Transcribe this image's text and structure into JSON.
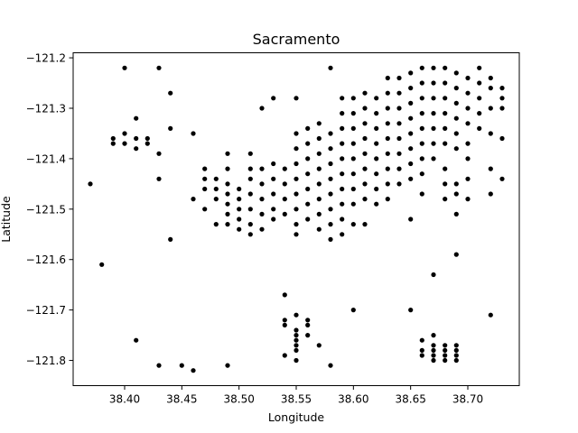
{
  "chart_data": {
    "type": "scatter",
    "title": "Sacramento",
    "xlabel": "Longitude",
    "ylabel": "Latitude",
    "xlim": [
      38.355,
      38.745
    ],
    "ylim": [
      -121.85,
      -121.19
    ],
    "xticks": [
      38.4,
      38.45,
      38.5,
      38.55,
      38.6,
      38.65,
      38.7
    ],
    "xtick_labels": [
      "38.40",
      "38.45",
      "38.50",
      "38.55",
      "38.60",
      "38.65",
      "38.70"
    ],
    "yticks": [
      -121.2,
      -121.3,
      -121.4,
      -121.5,
      -121.6,
      -121.7,
      -121.8
    ],
    "ytick_labels": [
      "−121.2",
      "−121.3",
      "−121.4",
      "−121.5",
      "−121.6",
      "−121.7",
      "−121.8"
    ],
    "grid": false,
    "legend": "none",
    "marker_color": "#000000",
    "points": [
      [
        38.4,
        -121.22
      ],
      [
        38.43,
        -121.22
      ],
      [
        38.58,
        -121.22
      ],
      [
        38.44,
        -121.27
      ],
      [
        38.41,
        -121.32
      ],
      [
        38.44,
        -121.34
      ],
      [
        38.53,
        -121.28
      ],
      [
        38.55,
        -121.28
      ],
      [
        38.52,
        -121.3
      ],
      [
        38.39,
        -121.36
      ],
      [
        38.39,
        -121.37
      ],
      [
        38.4,
        -121.35
      ],
      [
        38.4,
        -121.37
      ],
      [
        38.41,
        -121.36
      ],
      [
        38.41,
        -121.38
      ],
      [
        38.42,
        -121.36
      ],
      [
        38.42,
        -121.37
      ],
      [
        38.43,
        -121.39
      ],
      [
        38.43,
        -121.44
      ],
      [
        38.37,
        -121.45
      ],
      [
        38.38,
        -121.61
      ],
      [
        38.44,
        -121.56
      ],
      [
        38.46,
        -121.35
      ],
      [
        38.46,
        -121.48
      ],
      [
        38.48,
        -121.53
      ],
      [
        38.47,
        -121.5
      ],
      [
        38.41,
        -121.76
      ],
      [
        38.43,
        -121.81
      ],
      [
        38.45,
        -121.81
      ],
      [
        38.46,
        -121.82
      ],
      [
        38.49,
        -121.81
      ],
      [
        38.54,
        -121.67
      ],
      [
        38.54,
        -121.72
      ],
      [
        38.54,
        -121.73
      ],
      [
        38.54,
        -121.79
      ],
      [
        38.55,
        -121.71
      ],
      [
        38.55,
        -121.74
      ],
      [
        38.55,
        -121.75
      ],
      [
        38.55,
        -121.76
      ],
      [
        38.55,
        -121.77
      ],
      [
        38.55,
        -121.78
      ],
      [
        38.55,
        -121.8
      ],
      [
        38.56,
        -121.72
      ],
      [
        38.56,
        -121.73
      ],
      [
        38.56,
        -121.75
      ],
      [
        38.57,
        -121.77
      ],
      [
        38.58,
        -121.81
      ],
      [
        38.6,
        -121.7
      ],
      [
        38.65,
        -121.7
      ],
      [
        38.66,
        -121.76
      ],
      [
        38.66,
        -121.78
      ],
      [
        38.66,
        -121.79
      ],
      [
        38.67,
        -121.75
      ],
      [
        38.67,
        -121.77
      ],
      [
        38.67,
        -121.78
      ],
      [
        38.67,
        -121.79
      ],
      [
        38.67,
        -121.8
      ],
      [
        38.68,
        -121.77
      ],
      [
        38.68,
        -121.78
      ],
      [
        38.68,
        -121.79
      ],
      [
        38.68,
        -121.8
      ],
      [
        38.69,
        -121.77
      ],
      [
        38.69,
        -121.78
      ],
      [
        38.69,
        -121.79
      ],
      [
        38.69,
        -121.8
      ],
      [
        38.72,
        -121.71
      ],
      [
        38.67,
        -121.63
      ],
      [
        38.69,
        -121.59
      ],
      [
        38.47,
        -121.42
      ],
      [
        38.47,
        -121.44
      ],
      [
        38.47,
        -121.46
      ],
      [
        38.48,
        -121.44
      ],
      [
        38.48,
        -121.46
      ],
      [
        38.48,
        -121.48
      ],
      [
        38.49,
        -121.39
      ],
      [
        38.49,
        -121.42
      ],
      [
        38.49,
        -121.45
      ],
      [
        38.49,
        -121.47
      ],
      [
        38.49,
        -121.49
      ],
      [
        38.49,
        -121.51
      ],
      [
        38.49,
        -121.53
      ],
      [
        38.5,
        -121.46
      ],
      [
        38.5,
        -121.48
      ],
      [
        38.5,
        -121.5
      ],
      [
        38.5,
        -121.52
      ],
      [
        38.5,
        -121.54
      ],
      [
        38.51,
        -121.39
      ],
      [
        38.51,
        -121.42
      ],
      [
        38.51,
        -121.44
      ],
      [
        38.51,
        -121.47
      ],
      [
        38.51,
        -121.5
      ],
      [
        38.51,
        -121.53
      ],
      [
        38.51,
        -121.55
      ],
      [
        38.52,
        -121.42
      ],
      [
        38.52,
        -121.45
      ],
      [
        38.52,
        -121.48
      ],
      [
        38.52,
        -121.51
      ],
      [
        38.52,
        -121.54
      ],
      [
        38.53,
        -121.41
      ],
      [
        38.53,
        -121.44
      ],
      [
        38.53,
        -121.47
      ],
      [
        38.53,
        -121.5
      ],
      [
        38.53,
        -121.52
      ],
      [
        38.54,
        -121.42
      ],
      [
        38.54,
        -121.45
      ],
      [
        38.54,
        -121.48
      ],
      [
        38.54,
        -121.51
      ],
      [
        38.55,
        -121.35
      ],
      [
        38.55,
        -121.38
      ],
      [
        38.55,
        -121.41
      ],
      [
        38.55,
        -121.44
      ],
      [
        38.55,
        -121.47
      ],
      [
        38.55,
        -121.5
      ],
      [
        38.55,
        -121.53
      ],
      [
        38.55,
        -121.55
      ],
      [
        38.56,
        -121.34
      ],
      [
        38.56,
        -121.37
      ],
      [
        38.56,
        -121.4
      ],
      [
        38.56,
        -121.43
      ],
      [
        38.56,
        -121.46
      ],
      [
        38.56,
        -121.49
      ],
      [
        38.56,
        -121.52
      ],
      [
        38.57,
        -121.33
      ],
      [
        38.57,
        -121.36
      ],
      [
        38.57,
        -121.39
      ],
      [
        38.57,
        -121.42
      ],
      [
        38.57,
        -121.45
      ],
      [
        38.57,
        -121.48
      ],
      [
        38.57,
        -121.51
      ],
      [
        38.57,
        -121.54
      ],
      [
        38.58,
        -121.35
      ],
      [
        38.58,
        -121.38
      ],
      [
        38.58,
        -121.41
      ],
      [
        38.58,
        -121.44
      ],
      [
        38.58,
        -121.47
      ],
      [
        38.58,
        -121.5
      ],
      [
        38.58,
        -121.53
      ],
      [
        38.58,
        -121.56
      ],
      [
        38.59,
        -121.28
      ],
      [
        38.59,
        -121.31
      ],
      [
        38.59,
        -121.34
      ],
      [
        38.59,
        -121.37
      ],
      [
        38.59,
        -121.4
      ],
      [
        38.59,
        -121.43
      ],
      [
        38.59,
        -121.46
      ],
      [
        38.59,
        -121.49
      ],
      [
        38.59,
        -121.52
      ],
      [
        38.59,
        -121.55
      ],
      [
        38.6,
        -121.28
      ],
      [
        38.6,
        -121.31
      ],
      [
        38.6,
        -121.34
      ],
      [
        38.6,
        -121.37
      ],
      [
        38.6,
        -121.4
      ],
      [
        38.6,
        -121.43
      ],
      [
        38.6,
        -121.46
      ],
      [
        38.6,
        -121.49
      ],
      [
        38.6,
        -121.53
      ],
      [
        38.61,
        -121.27
      ],
      [
        38.61,
        -121.3
      ],
      [
        38.61,
        -121.33
      ],
      [
        38.61,
        -121.36
      ],
      [
        38.61,
        -121.39
      ],
      [
        38.61,
        -121.42
      ],
      [
        38.61,
        -121.45
      ],
      [
        38.61,
        -121.48
      ],
      [
        38.61,
        -121.53
      ],
      [
        38.62,
        -121.28
      ],
      [
        38.62,
        -121.31
      ],
      [
        38.62,
        -121.34
      ],
      [
        38.62,
        -121.37
      ],
      [
        38.62,
        -121.4
      ],
      [
        38.62,
        -121.43
      ],
      [
        38.62,
        -121.46
      ],
      [
        38.62,
        -121.49
      ],
      [
        38.63,
        -121.24
      ],
      [
        38.63,
        -121.27
      ],
      [
        38.63,
        -121.3
      ],
      [
        38.63,
        -121.33
      ],
      [
        38.63,
        -121.36
      ],
      [
        38.63,
        -121.39
      ],
      [
        38.63,
        -121.42
      ],
      [
        38.63,
        -121.45
      ],
      [
        38.63,
        -121.48
      ],
      [
        38.64,
        -121.24
      ],
      [
        38.64,
        -121.27
      ],
      [
        38.64,
        -121.3
      ],
      [
        38.64,
        -121.33
      ],
      [
        38.64,
        -121.36
      ],
      [
        38.64,
        -121.39
      ],
      [
        38.64,
        -121.42
      ],
      [
        38.64,
        -121.45
      ],
      [
        38.65,
        -121.23
      ],
      [
        38.65,
        -121.26
      ],
      [
        38.65,
        -121.29
      ],
      [
        38.65,
        -121.32
      ],
      [
        38.65,
        -121.35
      ],
      [
        38.65,
        -121.38
      ],
      [
        38.65,
        -121.41
      ],
      [
        38.65,
        -121.44
      ],
      [
        38.65,
        -121.52
      ],
      [
        38.66,
        -121.22
      ],
      [
        38.66,
        -121.25
      ],
      [
        38.66,
        -121.28
      ],
      [
        38.66,
        -121.31
      ],
      [
        38.66,
        -121.34
      ],
      [
        38.66,
        -121.37
      ],
      [
        38.66,
        -121.4
      ],
      [
        38.66,
        -121.43
      ],
      [
        38.66,
        -121.47
      ],
      [
        38.67,
        -121.22
      ],
      [
        38.67,
        -121.25
      ],
      [
        38.67,
        -121.28
      ],
      [
        38.67,
        -121.31
      ],
      [
        38.67,
        -121.34
      ],
      [
        38.67,
        -121.37
      ],
      [
        38.67,
        -121.4
      ],
      [
        38.68,
        -121.22
      ],
      [
        38.68,
        -121.25
      ],
      [
        38.68,
        -121.28
      ],
      [
        38.68,
        -121.31
      ],
      [
        38.68,
        -121.34
      ],
      [
        38.68,
        -121.37
      ],
      [
        38.68,
        -121.42
      ],
      [
        38.68,
        -121.45
      ],
      [
        38.68,
        -121.48
      ],
      [
        38.69,
        -121.23
      ],
      [
        38.69,
        -121.26
      ],
      [
        38.69,
        -121.29
      ],
      [
        38.69,
        -121.32
      ],
      [
        38.69,
        -121.35
      ],
      [
        38.69,
        -121.38
      ],
      [
        38.69,
        -121.45
      ],
      [
        38.69,
        -121.47
      ],
      [
        38.69,
        -121.51
      ],
      [
        38.7,
        -121.24
      ],
      [
        38.7,
        -121.27
      ],
      [
        38.7,
        -121.3
      ],
      [
        38.7,
        -121.33
      ],
      [
        38.7,
        -121.37
      ],
      [
        38.7,
        -121.4
      ],
      [
        38.7,
        -121.44
      ],
      [
        38.7,
        -121.48
      ],
      [
        38.71,
        -121.22
      ],
      [
        38.71,
        -121.25
      ],
      [
        38.71,
        -121.28
      ],
      [
        38.71,
        -121.31
      ],
      [
        38.71,
        -121.34
      ],
      [
        38.72,
        -121.24
      ],
      [
        38.72,
        -121.26
      ],
      [
        38.72,
        -121.3
      ],
      [
        38.72,
        -121.35
      ],
      [
        38.72,
        -121.42
      ],
      [
        38.72,
        -121.47
      ],
      [
        38.73,
        -121.26
      ],
      [
        38.73,
        -121.28
      ],
      [
        38.73,
        -121.3
      ],
      [
        38.73,
        -121.36
      ],
      [
        38.73,
        -121.44
      ]
    ]
  }
}
